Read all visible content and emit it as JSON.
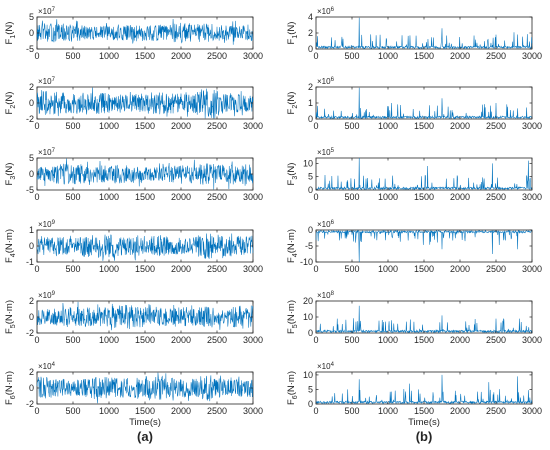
{
  "figure": {
    "xlabel": "Time(s)",
    "panel_labels": [
      "(a)",
      "(b)"
    ],
    "line_color": "#0072BD",
    "axis_color": "#262626"
  },
  "chart_data": [
    {
      "type": "line",
      "panel": "a",
      "row": 1,
      "ylabel_main": "F",
      "ylabel_sub": "1",
      "ylabel_unit": "(N)",
      "exponent_base": "×10",
      "exponent": "7",
      "xlim": [
        0,
        3000
      ],
      "ylim": [
        -5,
        5
      ],
      "yticks": [
        -5,
        0,
        5
      ],
      "xticks": [
        0,
        500,
        1000,
        1500,
        2000,
        2500,
        3000
      ],
      "signal": "random oscillation about 0, amplitude ≈ ±3.5×10^7 N"
    },
    {
      "type": "line",
      "panel": "a",
      "row": 2,
      "ylabel_main": "F",
      "ylabel_sub": "2",
      "ylabel_unit": "(N)",
      "exponent_base": "×10",
      "exponent": "7",
      "xlim": [
        0,
        3000
      ],
      "ylim": [
        -2,
        2
      ],
      "yticks": [
        -2,
        0,
        2
      ],
      "xticks": [
        0,
        500,
        1000,
        1500,
        2000,
        2500,
        3000
      ],
      "signal": "random oscillation about 0, amplitude ≈ ±2×10^7 N"
    },
    {
      "type": "line",
      "panel": "a",
      "row": 3,
      "ylabel_main": "F",
      "ylabel_sub": "3",
      "ylabel_unit": "(N)",
      "exponent_base": "×10",
      "exponent": "7",
      "xlim": [
        0,
        3000
      ],
      "ylim": [
        -5,
        5
      ],
      "yticks": [
        -5,
        0,
        5
      ],
      "xticks": [
        0,
        500,
        1000,
        1500,
        2000,
        2500,
        3000
      ],
      "signal": "random oscillation about 0, amplitude ≈ ±4×10^7 N"
    },
    {
      "type": "line",
      "panel": "a",
      "row": 4,
      "ylabel_main": "F",
      "ylabel_sub": "4",
      "ylabel_unit": "(N·m)",
      "exponent_base": "×10",
      "exponent": "9",
      "xlim": [
        0,
        3000
      ],
      "ylim": [
        -1,
        1
      ],
      "yticks": [
        -1,
        0,
        1
      ],
      "xticks": [
        0,
        500,
        1000,
        1500,
        2000,
        2500,
        3000
      ],
      "signal": "random oscillation about 0, amplitude ≈ ±0.9×10^9 N·m"
    },
    {
      "type": "line",
      "panel": "a",
      "row": 5,
      "ylabel_main": "F",
      "ylabel_sub": "5",
      "ylabel_unit": "(N·m)",
      "exponent_base": "×10",
      "exponent": "9",
      "xlim": [
        0,
        3000
      ],
      "ylim": [
        -2,
        2
      ],
      "yticks": [
        -2,
        0,
        2
      ],
      "xticks": [
        0,
        500,
        1000,
        1500,
        2000,
        2500,
        3000
      ],
      "signal": "random oscillation about 0, amplitude ≈ ±1.8×10^9 N·m"
    },
    {
      "type": "line",
      "panel": "a",
      "row": 6,
      "ylabel_main": "F",
      "ylabel_sub": "6",
      "ylabel_unit": "(N·m)",
      "exponent_base": "×10",
      "exponent": "4",
      "xlim": [
        0,
        3000
      ],
      "ylim": [
        -2,
        2
      ],
      "yticks": [
        -2,
        0,
        2
      ],
      "xticks": [
        0,
        500,
        1000,
        1500,
        2000,
        2500,
        3000
      ],
      "signal": "random oscillation about 0, amplitude ≈ ±1.8×10^4 N·m"
    },
    {
      "type": "line",
      "panel": "b",
      "row": 1,
      "ylabel_main": "F",
      "ylabel_sub": "1",
      "ylabel_unit": "(N)",
      "exponent_base": "×10",
      "exponent": "6",
      "xlim": [
        0,
        3000
      ],
      "ylim": [
        0,
        4
      ],
      "yticks": [
        0,
        2,
        4
      ],
      "xticks": [
        0,
        500,
        1000,
        1500,
        2000,
        2500,
        3000
      ],
      "signal": "positive spiky series, mostly < 1×10^6 N",
      "peaks": [
        [
          600,
          3.9
        ],
        [
          1750,
          2.6
        ],
        [
          2750,
          2.1
        ],
        [
          2500,
          1.8
        ]
      ]
    },
    {
      "type": "line",
      "panel": "b",
      "row": 2,
      "ylabel_main": "F",
      "ylabel_sub": "2",
      "ylabel_unit": "(N)",
      "exponent_base": "×10",
      "exponent": "6",
      "xlim": [
        0,
        3000
      ],
      "ylim": [
        0,
        2
      ],
      "yticks": [
        0,
        1,
        2
      ],
      "xticks": [
        0,
        500,
        1000,
        1500,
        2000,
        2500,
        3000
      ],
      "signal": "positive spiky series, mostly < 0.5×10^6 N",
      "peaks": [
        [
          600,
          1.95
        ],
        [
          1750,
          1.3
        ],
        [
          1050,
          1.0
        ],
        [
          2500,
          1.0
        ]
      ]
    },
    {
      "type": "line",
      "panel": "b",
      "row": 3,
      "ylabel_main": "F",
      "ylabel_sub": "3",
      "ylabel_unit": "(N)",
      "exponent_base": "×10",
      "exponent": "5",
      "xlim": [
        0,
        3000
      ],
      "ylim": [
        0,
        12
      ],
      "yticks": [
        0,
        5,
        10
      ],
      "xticks": [
        0,
        500,
        1000,
        1500,
        2000,
        2500,
        3000
      ],
      "signal": "positive spiky series, frequent peaks 5–10×10^5 N",
      "peaks": [
        [
          600,
          12
        ],
        [
          2950,
          11
        ],
        [
          2450,
          10
        ],
        [
          1550,
          9
        ]
      ]
    },
    {
      "type": "line",
      "panel": "b",
      "row": 4,
      "ylabel_main": "F",
      "ylabel_sub": "4",
      "ylabel_unit": "(N·m)",
      "exponent_base": "×10",
      "exponent": "6",
      "xlim": [
        0,
        3000
      ],
      "ylim": [
        -10,
        0
      ],
      "yticks": [
        -10,
        -5,
        0
      ],
      "xticks": [
        0,
        500,
        1000,
        1500,
        2000,
        2500,
        3000
      ],
      "signal": "negative spiky series, mostly > -2×10^6 N·m",
      "peaks": [
        [
          600,
          -10
        ],
        [
          2450,
          -7.5
        ],
        [
          1750,
          -6
        ],
        [
          2800,
          -6
        ]
      ]
    },
    {
      "type": "line",
      "panel": "b",
      "row": 5,
      "ylabel_main": "F",
      "ylabel_sub": "5",
      "ylabel_unit": "(N·m)",
      "exponent_base": "×10",
      "exponent": "8",
      "xlim": [
        0,
        3000
      ],
      "ylim": [
        0,
        20
      ],
      "yticks": [
        0,
        10,
        20
      ],
      "xticks": [
        0,
        500,
        1000,
        1500,
        2000,
        2500,
        3000
      ],
      "signal": "positive spiky series, mostly < 6×10^8 N·m",
      "peaks": [
        [
          600,
          17
        ],
        [
          1750,
          11
        ],
        [
          2500,
          9
        ],
        [
          1050,
          8
        ]
      ]
    },
    {
      "type": "line",
      "panel": "b",
      "row": 6,
      "ylabel_main": "F",
      "ylabel_sub": "6",
      "ylabel_unit": "(N·m)",
      "exponent_base": "×10",
      "exponent": "4",
      "xlim": [
        0,
        3000
      ],
      "ylim": [
        0,
        11
      ],
      "yticks": [
        0,
        5,
        10
      ],
      "xticks": [
        0,
        500,
        1000,
        1500,
        2000,
        2500,
        3000
      ],
      "signal": "positive spiky series with many peaks 5–10×10^4 N·m",
      "peaks": [
        [
          600,
          8.5
        ],
        [
          1750,
          10
        ],
        [
          2800,
          9.5
        ],
        [
          1300,
          7
        ],
        [
          2400,
          7.5
        ]
      ]
    }
  ]
}
